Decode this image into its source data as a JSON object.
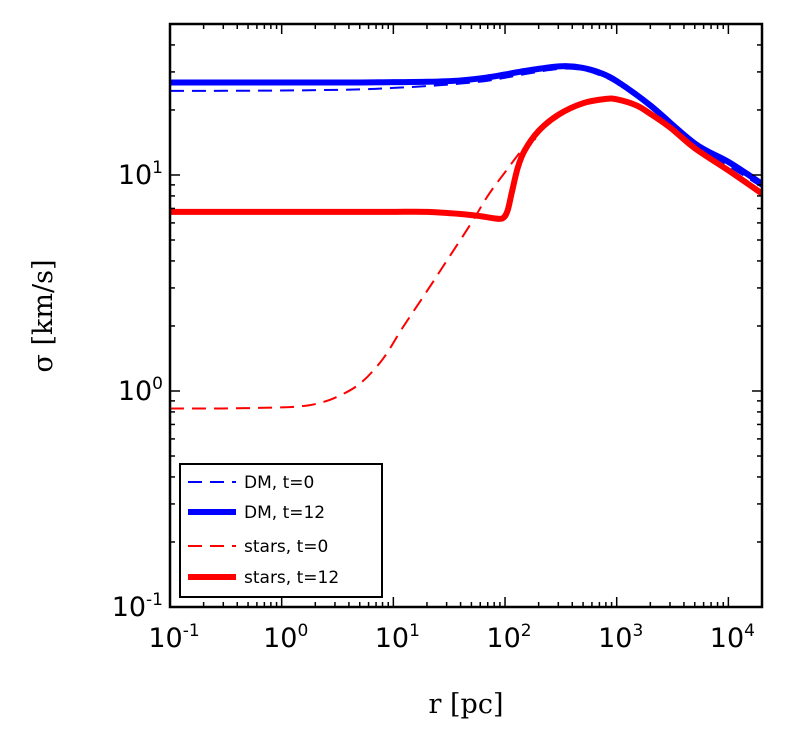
{
  "chart_data": {
    "type": "line",
    "xscale": "log",
    "yscale": "log",
    "xlim": [
      0.1,
      20000
    ],
    "ylim": [
      0.1,
      50
    ],
    "xlabel": "r [pc]",
    "ylabel": "σ [km/s]",
    "xticks": [
      {
        "base": "10",
        "exp": "-1",
        "value": 0.1
      },
      {
        "base": "10",
        "exp": "0",
        "value": 1
      },
      {
        "base": "10",
        "exp": "1",
        "value": 10
      },
      {
        "base": "10",
        "exp": "2",
        "value": 100
      },
      {
        "base": "10",
        "exp": "3",
        "value": 1000
      },
      {
        "base": "10",
        "exp": "4",
        "value": 10000
      }
    ],
    "yticks": [
      {
        "base": "10",
        "exp": "-1",
        "value": 0.1
      },
      {
        "base": "10",
        "exp": "0",
        "value": 1
      },
      {
        "base": "10",
        "exp": "1",
        "value": 10
      }
    ],
    "series": [
      {
        "name": "DM, t=0",
        "color": "#0000ff",
        "style": "dashed",
        "width": 2,
        "x": [
          0.1,
          1,
          5,
          10,
          20,
          40,
          70,
          100,
          150,
          250,
          350,
          500,
          700,
          1000,
          2000,
          5000,
          10000,
          20000
        ],
        "y": [
          24.5,
          24.6,
          24.9,
          25.3,
          25.8,
          26.5,
          27.3,
          28.2,
          29.3,
          30.6,
          31.1,
          30.6,
          29.0,
          26.5,
          20.5,
          13.5,
          11.0,
          8.8
        ]
      },
      {
        "name": "DM, t=12",
        "color": "#0000ff",
        "style": "solid",
        "width": 6,
        "x": [
          0.1,
          1,
          5,
          10,
          20,
          40,
          70,
          100,
          150,
          250,
          350,
          500,
          700,
          1000,
          2000,
          5000,
          10000,
          20000
        ],
        "y": [
          26.8,
          26.8,
          26.8,
          26.9,
          27.0,
          27.4,
          28.3,
          29.2,
          30.3,
          31.5,
          31.9,
          31.3,
          29.8,
          27.2,
          21.0,
          14.0,
          11.5,
          9.1
        ]
      },
      {
        "name": "stars, t=0",
        "color": "#ff0000",
        "style": "dashed",
        "width": 2,
        "x": [
          0.1,
          0.3,
          1,
          1.5,
          2,
          3,
          5,
          8,
          12,
          20,
          30,
          50,
          70,
          100,
          150,
          200
        ],
        "y": [
          0.83,
          0.83,
          0.84,
          0.85,
          0.87,
          0.93,
          1.08,
          1.4,
          1.95,
          2.9,
          4.0,
          6.0,
          8.0,
          10.3,
          13.5,
          15.0
        ]
      },
      {
        "name": "stars, t=12",
        "color": "#ff0000",
        "style": "solid",
        "width": 6,
        "x": [
          0.1,
          1,
          5,
          10,
          20,
          40,
          60,
          80,
          95,
          105,
          115,
          130,
          150,
          200,
          300,
          500,
          800,
          1000,
          1500,
          2000,
          3000,
          5000,
          10000,
          20000
        ],
        "y": [
          6.75,
          6.75,
          6.75,
          6.75,
          6.75,
          6.6,
          6.45,
          6.3,
          6.3,
          6.8,
          8.3,
          10.8,
          13.0,
          16.0,
          19.0,
          21.5,
          22.5,
          22.4,
          21.0,
          19.2,
          16.6,
          13.3,
          10.5,
          8.2
        ]
      }
    ],
    "legend": {
      "position": "bottom-left",
      "entries": [
        "DM, t=0",
        "DM, t=12",
        "stars, t=0",
        "stars, t=12"
      ]
    }
  }
}
